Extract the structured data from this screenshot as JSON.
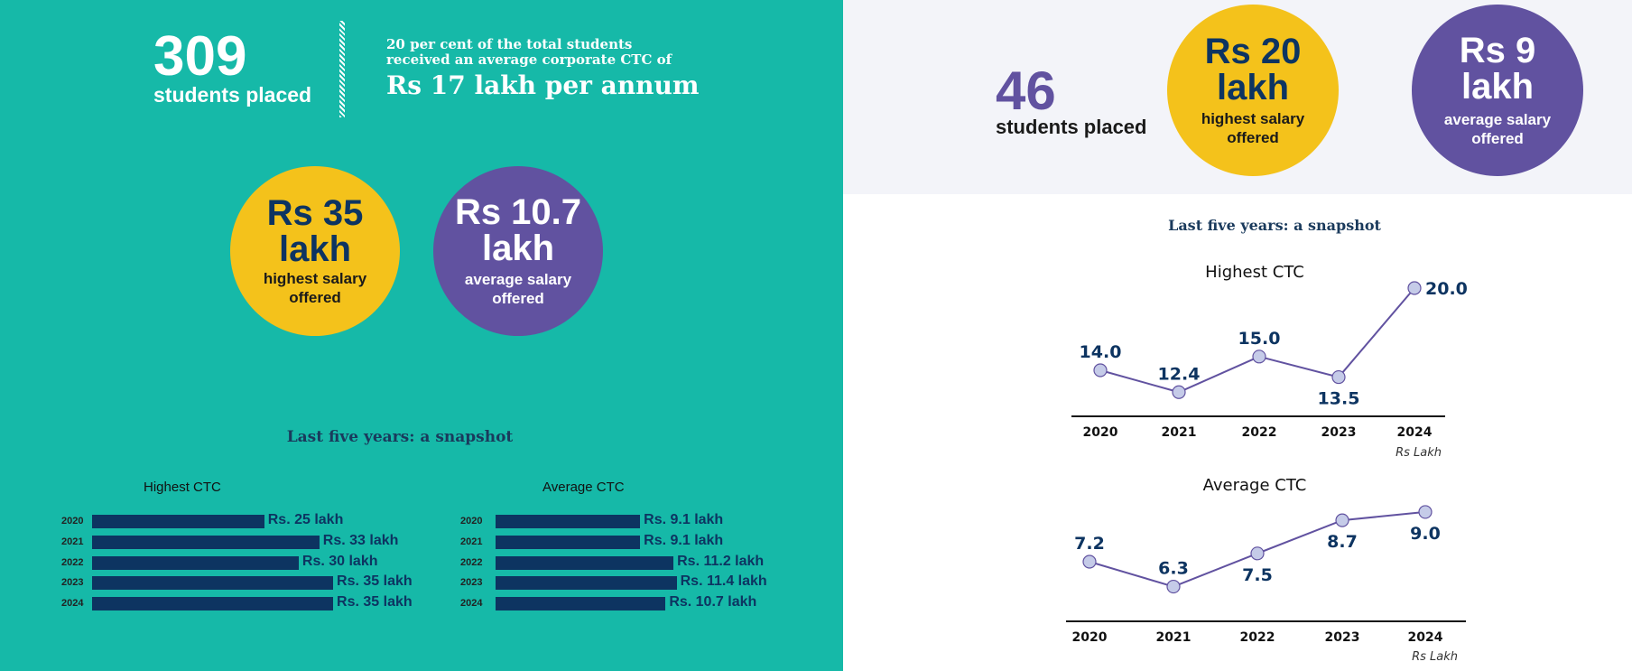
{
  "left": {
    "students_count": "309",
    "students_label": "students placed",
    "note_line1": "20 per cent of the total students",
    "note_line2": "received an average corporate CTC of",
    "note_highlight": "Rs 17 lakh per annum",
    "highest_circle": {
      "value": "Rs 35",
      "unit": "lakh",
      "line1": "highest salary",
      "line2": "offered"
    },
    "average_circle": {
      "value": "Rs 10.7",
      "unit": "lakh",
      "line1": "average salary",
      "line2": "offered"
    },
    "snapshot_title": "Last five years: a snapshot"
  },
  "right": {
    "students_count": "46",
    "students_label": "students placed",
    "highest_circle": {
      "value": "Rs 20",
      "unit": "lakh",
      "line1": "highest salary",
      "line2": "offered"
    },
    "average_circle": {
      "value": "Rs 9",
      "unit": "lakh",
      "line1": "average salary",
      "line2": "offered"
    },
    "snapshot_title": "Last five years: a snapshot"
  },
  "colors": {
    "teal": "#16b9a8",
    "yellow": "#f4c21b",
    "purple": "#6152a0",
    "navy": "#0d3461",
    "dot": "#c5cbe8"
  },
  "chart_data": [
    {
      "type": "bar",
      "orientation": "horizontal",
      "title": "Highest CTC",
      "categories": [
        "2020",
        "2021",
        "2022",
        "2023",
        "2024"
      ],
      "values": [
        25,
        33,
        30,
        35,
        35
      ],
      "labels": [
        "Rs. 25 lakh",
        "Rs. 33 lakh",
        "Rs. 30 lakh",
        "Rs. 35 lakh",
        "Rs. 35 lakh"
      ]
    },
    {
      "type": "bar",
      "orientation": "horizontal",
      "title": "Average CTC",
      "categories": [
        "2020",
        "2021",
        "2022",
        "2023",
        "2024"
      ],
      "values": [
        9.1,
        9.1,
        11.2,
        11.4,
        10.7
      ],
      "labels": [
        "Rs. 9.1 lakh",
        "Rs. 9.1 lakh",
        "Rs. 11.2 lakh",
        "Rs. 11.4 lakh",
        "Rs. 10.7 lakh"
      ]
    },
    {
      "type": "line",
      "title": "Highest CTC",
      "categories": [
        "2020",
        "2021",
        "2022",
        "2023",
        "2024"
      ],
      "values": [
        14.0,
        12.4,
        15.0,
        13.5,
        20.0
      ],
      "labels": [
        "14.0",
        "12.4",
        "15.0",
        "13.5",
        "20.0"
      ],
      "unit": "Rs Lakh"
    },
    {
      "type": "line",
      "title": "Average CTC",
      "categories": [
        "2020",
        "2021",
        "2022",
        "2023",
        "2024"
      ],
      "values": [
        7.2,
        6.3,
        7.5,
        8.7,
        9.0
      ],
      "labels": [
        "7.2",
        "6.3",
        "7.5",
        "8.7",
        "9.0"
      ],
      "unit": "Rs Lakh"
    }
  ]
}
